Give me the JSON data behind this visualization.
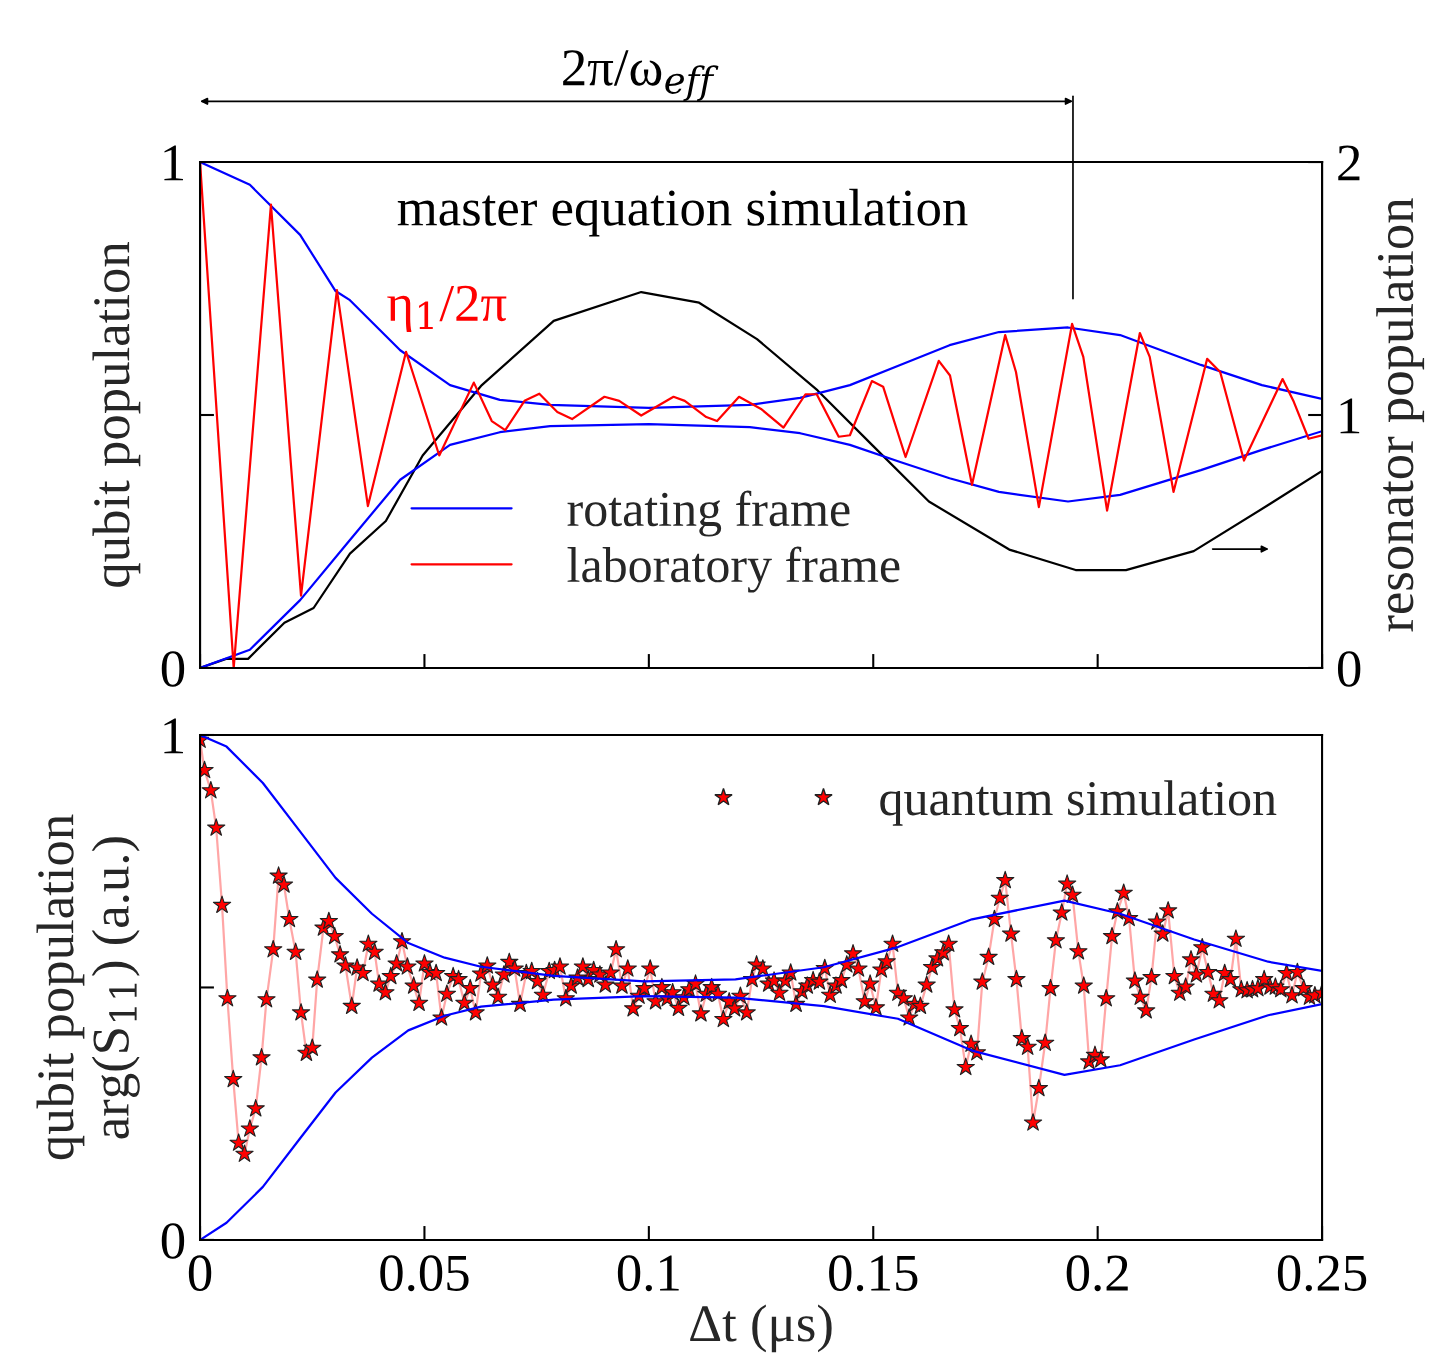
{
  "chart_data": [
    {
      "type": "line",
      "ylabel": "qubit population",
      "y2label": "resonator population",
      "xlim": [
        0,
        0.25
      ],
      "xticks": [
        0,
        0.05,
        0.1,
        0.15,
        0.2,
        0.25
      ],
      "tick_labels": "y",
      "ylim": [
        0,
        1
      ],
      "yticks": [
        0,
        {
          "value": 0.5,
          "label": null
        },
        1
      ],
      "y2lim": [
        0,
        2
      ],
      "y2ticks": [
        0,
        1,
        2
      ],
      "legend": "bottom",
      "grid": false,
      "annotations": [
        "master equation simulation",
        "η$_{1}$/2π",
        "2π/ω$_{eff}$"
      ],
      "ref_lines": [
        {
          "axis": "x",
          "value": 0.1945
        }
      ],
      "series": [
        {
          "name": "rotating frame",
          "color": "#0000ff",
          "marker": "none",
          "x": [
            0,
            0.0111,
            0.0223,
            0.0302,
            0.0334,
            0.0446,
            0.0557,
            0.0668,
            0.078,
            0.1,
            0.1225,
            0.1337,
            0.1448,
            0.156,
            0.167,
            0.178,
            0.1934,
            0.205,
            0.223,
            0.2366,
            0.25
          ],
          "values": [
            1.0,
            0.955,
            0.856,
            0.745,
            0.727,
            0.628,
            0.559,
            0.53,
            0.52,
            0.514,
            0.52,
            0.534,
            0.559,
            0.599,
            0.638,
            0.664,
            0.673,
            0.658,
            0.599,
            0.559,
            0.532
          ]
        },
        {
          "color": "#0000ff",
          "marker": "none",
          "x": [
            0,
            0.0111,
            0.0223,
            0.0334,
            0.0446,
            0.0557,
            0.0668,
            0.078,
            0.1,
            0.1225,
            0.1337,
            0.1448,
            0.156,
            0.167,
            0.178,
            0.1934,
            0.205,
            0.223,
            0.2366,
            0.25
          ],
          "values": [
            0,
            0.036,
            0.134,
            0.253,
            0.372,
            0.441,
            0.466,
            0.478,
            0.482,
            0.476,
            0.464,
            0.441,
            0.407,
            0.375,
            0.348,
            0.329,
            0.342,
            0.391,
            0.431,
            0.468
          ]
        },
        {
          "name": "laboratory frame",
          "color": "#ff0000",
          "marker": "none",
          "x": [
            0,
            0.0075,
            0.0158,
            0.0225,
            0.0305,
            0.0374,
            0.0459,
            0.0533,
            0.061,
            0.065,
            0.068,
            0.0723,
            0.0756,
            0.0796,
            0.0829,
            0.0901,
            0.0934,
            0.0983,
            0.1055,
            0.108,
            0.1128,
            0.1152,
            0.1201,
            0.125,
            0.13,
            0.1349,
            0.1374,
            0.1423,
            0.1448,
            0.1497,
            0.1522,
            0.1572,
            0.1646,
            0.1671,
            0.172,
            0.1794,
            0.1818,
            0.1869,
            0.1943,
            0.1968,
            0.2021,
            0.2094,
            0.2116,
            0.2169,
            0.2244,
            0.2273,
            0.2326,
            0.2412,
            0.2437,
            0.247,
            0.25
          ],
          "values": [
            1.0,
            0.0,
            0.916,
            0.143,
            0.747,
            0.32,
            0.625,
            0.42,
            0.564,
            0.488,
            0.47,
            0.528,
            0.542,
            0.506,
            0.492,
            0.536,
            0.528,
            0.499,
            0.536,
            0.528,
            0.496,
            0.488,
            0.536,
            0.512,
            0.475,
            0.541,
            0.541,
            0.457,
            0.46,
            0.567,
            0.556,
            0.417,
            0.607,
            0.578,
            0.362,
            0.658,
            0.585,
            0.318,
            0.68,
            0.615,
            0.311,
            0.662,
            0.615,
            0.348,
            0.611,
            0.585,
            0.41,
            0.571,
            0.526,
            0.453,
            0.46
          ]
        },
        {
          "color": "#000000",
          "marker": "none",
          "axis": "y2",
          "x": [
            0,
            0.0058,
            0.0107,
            0.0188,
            0.0253,
            0.0334,
            0.0414,
            0.0496,
            0.0626,
            0.0788,
            0.0983,
            0.1112,
            0.1241,
            0.1376,
            0.15,
            0.1624,
            0.1803,
            0.1951,
            0.2063,
            0.2214,
            0.238,
            0.25
          ],
          "values": [
            0,
            0.036,
            0.036,
            0.179,
            0.237,
            0.452,
            0.581,
            0.84,
            1.115,
            1.372,
            1.486,
            1.444,
            1.3,
            1.097,
            0.877,
            0.658,
            0.468,
            0.387,
            0.387,
            0.462,
            0.644,
            0.779
          ]
        }
      ]
    },
    {
      "type": "line",
      "xlabel": "Δt (μs)",
      "ylabel": "qubit population\narg(S$_{11}$) (a.u.)",
      "xlim": [
        0,
        0.25
      ],
      "xticks": [
        0,
        0.05,
        0.1,
        0.15,
        0.2,
        0.25
      ],
      "ylim": [
        0,
        1
      ],
      "yticks": [
        0,
        {
          "value": 0.5,
          "label": null
        },
        1
      ],
      "legend": "top right",
      "grid": false,
      "series": [
        {
          "color": "#0000ff",
          "marker": "none",
          "x": [
            0,
            0.0059,
            0.014,
            0.0221,
            0.0302,
            0.0383,
            0.0464,
            0.0545,
            0.0626,
            0.0788,
            0.099,
            0.1193,
            0.139,
            0.1555,
            0.172,
            0.1926,
            0.205,
            0.2215,
            0.238,
            0.25
          ],
          "values": [
            1.0,
            0.977,
            0.905,
            0.811,
            0.717,
            0.646,
            0.588,
            0.559,
            0.541,
            0.523,
            0.512,
            0.516,
            0.54,
            0.58,
            0.635,
            0.672,
            0.646,
            0.595,
            0.551,
            0.533
          ]
        },
        {
          "color": "#0000ff",
          "marker": "none",
          "x": [
            0,
            0.0059,
            0.014,
            0.0221,
            0.0302,
            0.0383,
            0.0464,
            0.0545,
            0.0626,
            0.0788,
            0.099,
            0.1193,
            0.139,
            0.1555,
            0.172,
            0.1926,
            0.205,
            0.2215,
            0.238,
            0.25
          ],
          "values": [
            0,
            0.034,
            0.105,
            0.199,
            0.292,
            0.361,
            0.415,
            0.444,
            0.462,
            0.476,
            0.483,
            0.48,
            0.463,
            0.438,
            0.375,
            0.327,
            0.346,
            0.397,
            0.445,
            0.467
          ]
        },
        {
          "name": "quantum simulation",
          "color": "#ff0000",
          "marker": "star",
          "x": [
            0,
            0.001,
            0.0024,
            0.0036,
            0.0049,
            0.0061,
            0.0074,
            0.0086,
            0.0099,
            0.0111,
            0.0124,
            0.0137,
            0.0148,
            0.0163,
            0.0175,
            0.0187,
            0.0199,
            0.0213,
            0.0225,
            0.0237,
            0.025,
            0.0261,
            0.0275,
            0.0287,
            0.03,
            0.0312,
            0.0324,
            0.0338,
            0.035,
            0.0363,
            0.0375,
            0.0389,
            0.0399,
            0.0413,
            0.0425,
            0.0438,
            0.045,
            0.0462,
            0.0476,
            0.0488,
            0.05,
            0.0512,
            0.0526,
            0.0538,
            0.055,
            0.0564,
            0.0576,
            0.0589,
            0.0602,
            0.0614,
            0.0626,
            0.064,
            0.0652,
            0.0664,
            0.0677,
            0.0689,
            0.0701,
            0.0713,
            0.0727,
            0.0739,
            0.0752,
            0.0764,
            0.0778,
            0.079,
            0.0802,
            0.0815,
            0.0827,
            0.0841,
            0.0853,
            0.0865,
            0.0877,
            0.0891,
            0.0903,
            0.0915,
            0.0927,
            0.094,
            0.0953,
            0.0965,
            0.0978,
            0.099,
            0.1003,
            0.1015,
            0.1029,
            0.1041,
            0.1053,
            0.1066,
            0.1078,
            0.109,
            0.1104,
            0.1116,
            0.1128,
            0.114,
            0.1154,
            0.1166,
            0.1179,
            0.1191,
            0.1204,
            0.1218,
            0.123,
            0.124,
            0.1254,
            0.1267,
            0.1279,
            0.1291,
            0.1304,
            0.1316,
            0.1328,
            0.1341,
            0.1353,
            0.1366,
            0.138,
            0.1392,
            0.1404,
            0.1417,
            0.1429,
            0.1441,
            0.1455,
            0.1467,
            0.1481,
            0.1493,
            0.1506,
            0.1518,
            0.153,
            0.1543,
            0.1555,
            0.1568,
            0.158,
            0.1592,
            0.1605,
            0.1619,
            0.1631,
            0.1643,
            0.1656,
            0.1668,
            0.1681,
            0.1693,
            0.1706,
            0.1718,
            0.1731,
            0.1743,
            0.1757,
            0.177,
            0.1782,
            0.1794,
            0.1807,
            0.1819,
            0.1831,
            0.1844,
            0.1856,
            0.1869,
            0.1883,
            0.1895,
            0.1907,
            0.192,
            0.1932,
            0.1944,
            0.1957,
            0.1969,
            0.1981,
            0.1994,
            0.2007,
            0.2019,
            0.2032,
            0.2044,
            0.2058,
            0.207,
            0.2083,
            0.2095,
            0.2108,
            0.212,
            0.2132,
            0.2145,
            0.2157,
            0.2171,
            0.2183,
            0.2196,
            0.2208,
            0.222,
            0.2233,
            0.2246,
            0.2258,
            0.2271,
            0.2283,
            0.2296,
            0.2308,
            0.232,
            0.2333,
            0.2345,
            0.2357,
            0.2371,
            0.2384,
            0.2396,
            0.2408,
            0.2421,
            0.2433,
            0.2445,
            0.2459,
            0.2472,
            0.2484,
            0.25
          ],
          "values": [
            0.99,
            0.93,
            0.89,
            0.816,
            0.663,
            0.478,
            0.318,
            0.192,
            0.17,
            0.22,
            0.26,
            0.361,
            0.476,
            0.575,
            0.721,
            0.703,
            0.635,
            0.57,
            0.45,
            0.37,
            0.38,
            0.515,
            0.618,
            0.631,
            0.601,
            0.565,
            0.543,
            0.463,
            0.539,
            0.528,
            0.586,
            0.57,
            0.507,
            0.49,
            0.522,
            0.547,
            0.591,
            0.541,
            0.503,
            0.469,
            0.547,
            0.53,
            0.528,
            0.44,
            0.487,
            0.522,
            0.516,
            0.469,
            0.498,
            0.45,
            0.527,
            0.543,
            0.505,
            0.481,
            0.525,
            0.55,
            0.537,
            0.467,
            0.528,
            0.532,
            0.512,
            0.485,
            0.532,
            0.534,
            0.541,
            0.478,
            0.503,
            0.519,
            0.541,
            0.516,
            0.534,
            0.525,
            0.505,
            0.529,
            0.575,
            0.503,
            0.537,
            0.458,
            0.483,
            0.498,
            0.537,
            0.472,
            0.5,
            0.478,
            0.49,
            0.459,
            0.48,
            0.496,
            0.507,
            0.448,
            0.487,
            0.5,
            0.487,
            0.437,
            0.472,
            0.458,
            0.483,
            0.45,
            0.516,
            0.545,
            0.537,
            0.507,
            0.513,
            0.489,
            0.513,
            0.529,
            0.467,
            0.492,
            0.503,
            0.514,
            0.511,
            0.538,
            0.485,
            0.503,
            0.514,
            0.545,
            0.567,
            0.537,
            0.472,
            0.507,
            0.46,
            0.535,
            0.551,
            0.586,
            0.489,
            0.478,
            0.44,
            0.467,
            0.463,
            0.505,
            0.54,
            0.557,
            0.569,
            0.586,
            0.456,
            0.419,
            0.342,
            0.388,
            0.371,
            0.511,
            0.56,
            0.635,
            0.677,
            0.712,
            0.606,
            0.516,
            0.399,
            0.382,
            0.232,
            0.3,
            0.39,
            0.498,
            0.593,
            0.648,
            0.705,
            0.683,
            0.571,
            0.503,
            0.353,
            0.366,
            0.357,
            0.478,
            0.601,
            0.65,
            0.687,
            0.637,
            0.513,
            0.481,
            0.454,
            0.52,
            0.63,
            0.606,
            0.652,
            0.522,
            0.489,
            0.501,
            0.555,
            0.525,
            0.579,
            0.53,
            0.487,
            0.474,
            0.528,
            0.516,
            0.596,
            0.496,
            0.494,
            0.496,
            0.498,
            0.516,
            0.501,
            0.501,
            0.496,
            0.528,
            0.484,
            0.53,
            0.498,
            0.481,
            0.484,
            0.489
          ]
        }
      ]
    }
  ]
}
